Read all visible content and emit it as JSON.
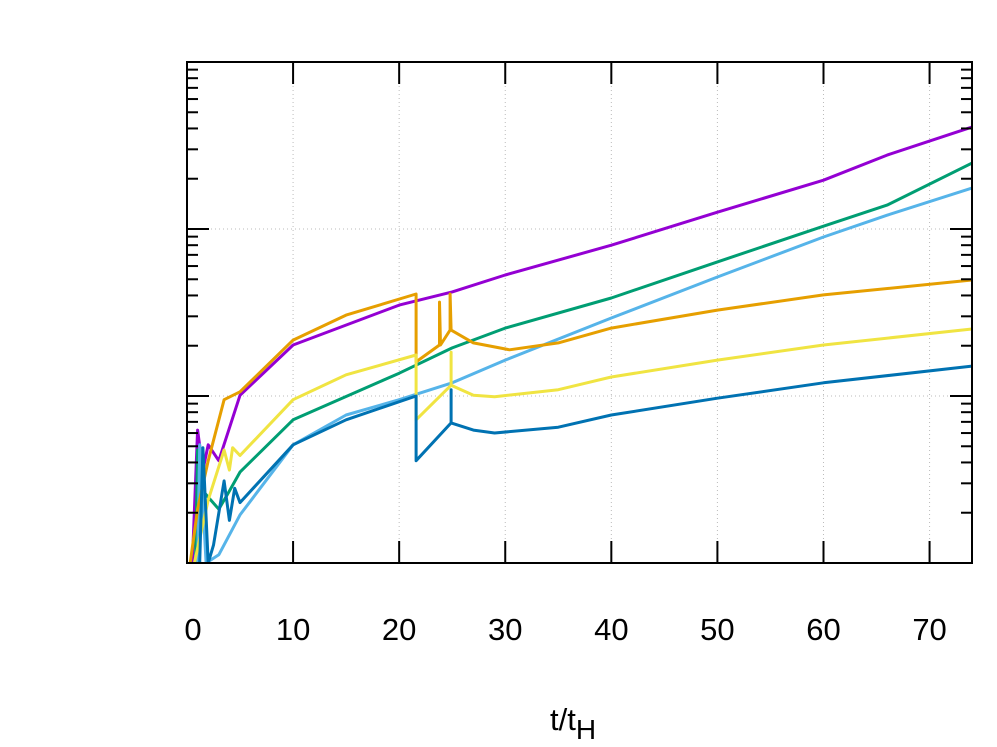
{
  "chart_data": {
    "type": "line",
    "title": "",
    "xlabel": "t/t",
    "xlabel_subscript": "H",
    "ylabel": "",
    "xlim": [
      0,
      74
    ],
    "ylim": [
      1,
      1000
    ],
    "yscale": "log",
    "y_tick_labels_shown": false,
    "grid": true,
    "legend": "none",
    "x_ticks": [
      0,
      10,
      20,
      30,
      40,
      50,
      60,
      70
    ],
    "x_tick_labels": [
      "0",
      "10",
      "20",
      "30",
      "40",
      "50",
      "60",
      "70"
    ],
    "series": [
      {
        "color": "#9400d3",
        "x": [
          0.5,
          1,
          1.5,
          2,
          3,
          5,
          10,
          20,
          25,
          30,
          40,
          50,
          60,
          66,
          74
        ],
        "y": [
          1.0,
          6.25,
          3.6,
          5.1,
          4.1,
          10.1,
          20.2,
          35,
          42,
          53,
          80,
          126,
          196,
          277,
          408
        ]
      },
      {
        "color": "#009e73",
        "x": [
          0.8,
          1,
          1.5,
          3,
          4,
          5,
          10,
          20,
          25,
          30,
          40,
          50,
          60,
          66,
          74
        ],
        "y": [
          1.0,
          4.75,
          2.7,
          2.1,
          2.7,
          3.5,
          7.2,
          13.7,
          19.4,
          25.5,
          38.6,
          63.5,
          104,
          139,
          248
        ]
      },
      {
        "color": "#56b4e9",
        "x": [
          1,
          1.2,
          1.8,
          3,
          5,
          10,
          15,
          20,
          25,
          30,
          40,
          50,
          60,
          66,
          74
        ],
        "y": [
          1.0,
          5.1,
          1.0,
          1.12,
          1.94,
          5.1,
          7.7,
          9.5,
          12,
          16.4,
          29.3,
          51.6,
          89.5,
          121,
          176
        ]
      },
      {
        "color": "#e69f00",
        "x": [
          0.3,
          1,
          2,
          3.5,
          5,
          10,
          15,
          21.6,
          21.6,
          23.8,
          23.8,
          23.9,
          24.8,
          24.8,
          24.9,
          27,
          30.4,
          35,
          40,
          50,
          60,
          74
        ],
        "y": [
          1.0,
          2.1,
          4.1,
          9.5,
          10.6,
          21.6,
          30.5,
          40.8,
          16,
          20.2,
          36.5,
          20.2,
          24.8,
          40.8,
          24.8,
          20.8,
          18.9,
          20.8,
          25.5,
          32.7,
          40.3,
          49.5
        ]
      },
      {
        "color": "#f0e442",
        "x": [
          0.7,
          2,
          3.5,
          4,
          4.3,
          5,
          10,
          15,
          21.6,
          21.6,
          24.9,
          24.9,
          24.9,
          27,
          29,
          35,
          40,
          50,
          60,
          74
        ],
        "y": [
          1.0,
          2.38,
          4.75,
          3.6,
          4.9,
          4.4,
          9.5,
          13.4,
          17.6,
          7.2,
          11.6,
          18.3,
          11.6,
          10.1,
          9.9,
          10.9,
          13,
          16.4,
          20.2,
          25.2
        ]
      },
      {
        "color": "#0072b2",
        "x": [
          1.2,
          1.5,
          2,
          2.5,
          3.5,
          4,
          4.5,
          5,
          10,
          15,
          21.6,
          21.6,
          24.9,
          24.9,
          24.9,
          27,
          29,
          35,
          40,
          50,
          60,
          74
        ],
        "y": [
          1.0,
          4.9,
          1.0,
          1.28,
          3.1,
          1.8,
          2.8,
          2.3,
          5.1,
          7.2,
          10,
          4.1,
          6.9,
          10.9,
          6.9,
          6.25,
          6.0,
          6.5,
          7.7,
          9.7,
          12,
          15.1
        ]
      }
    ]
  }
}
